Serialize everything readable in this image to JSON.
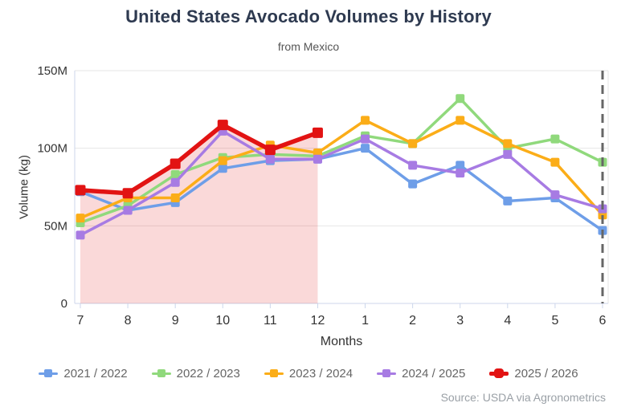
{
  "header": {
    "title": "United States Avocado Volumes by History",
    "subtitle": "from Mexico"
  },
  "footer": {
    "source": "Source: USDA via Agronometrics"
  },
  "chart_data": {
    "type": "line",
    "title": "United States Avocado Volumes by History",
    "subtitle": "from Mexico",
    "xlabel": "Months",
    "ylabel": "Volume (kg)",
    "x_categories": [
      "7",
      "8",
      "9",
      "10",
      "11",
      "12",
      "1",
      "2",
      "3",
      "4",
      "5",
      "6"
    ],
    "y_ticks": [
      {
        "label": "0",
        "value": 0
      },
      {
        "label": "50M",
        "value": 50
      },
      {
        "label": "100M",
        "value": 100
      },
      {
        "label": "150M",
        "value": 150
      }
    ],
    "ylim": [
      0,
      155
    ],
    "values_unit": "million kg",
    "grid": "horizontal",
    "legend_position": "bottom",
    "series": [
      {
        "name": "2021 / 2022",
        "color": "#6E9EE8",
        "emphasis": false,
        "values": [
          72,
          60,
          65,
          87,
          92,
          93,
          100,
          77,
          89,
          66,
          68,
          47
        ]
      },
      {
        "name": "2022 / 2023",
        "color": "#90D97C",
        "emphasis": false,
        "values": [
          52,
          63,
          83,
          94,
          96,
          95,
          108,
          103,
          132,
          100,
          106,
          91
        ]
      },
      {
        "name": "2023 / 2024",
        "color": "#FBAD18",
        "emphasis": false,
        "values": [
          55,
          68,
          68,
          92,
          102,
          97,
          118,
          103,
          118,
          103,
          91,
          57
        ]
      },
      {
        "name": "2024 / 2025",
        "color": "#A77BE3",
        "emphasis": false,
        "values": [
          44,
          60,
          78,
          111,
          93,
          93,
          106,
          89,
          84,
          96,
          70,
          61
        ]
      },
      {
        "name": "2025 / 2026",
        "color": "#E21313",
        "emphasis": true,
        "values": [
          73,
          71,
          90,
          115,
          99,
          110,
          null,
          null,
          null,
          null,
          null,
          null
        ]
      }
    ],
    "highlight_region": {
      "under_series": "2025 / 2026",
      "from": "7",
      "to": "12",
      "fill": "rgba(226,19,19,0.16)"
    },
    "dashed_line": {
      "at": "6",
      "color": "#666666",
      "style": "dashed"
    }
  }
}
